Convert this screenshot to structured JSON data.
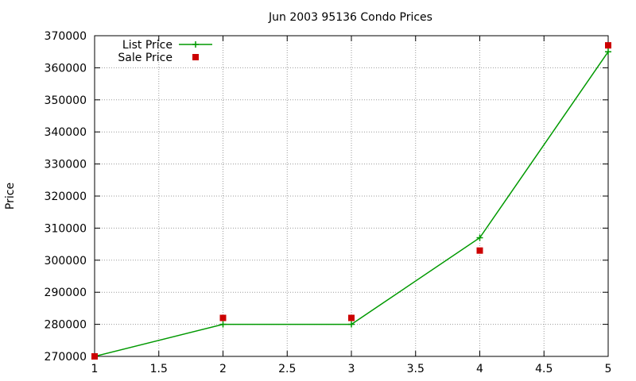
{
  "chart_data": {
    "type": "line",
    "title": "Jun 2003 95136 Condo Prices",
    "xlabel": "",
    "ylabel": "Price",
    "xlim": [
      1,
      5
    ],
    "ylim": [
      270000,
      370000
    ],
    "xticks": [
      "1",
      "1.5",
      "2",
      "2.5",
      "3",
      "3.5",
      "4",
      "4.5",
      "5"
    ],
    "yticks": [
      "270000",
      "280000",
      "290000",
      "300000",
      "310000",
      "320000",
      "330000",
      "340000",
      "350000",
      "360000",
      "370000"
    ],
    "grid": true,
    "legend_position": "top-left",
    "series": [
      {
        "name": "List Price",
        "style": "line-with-plus-markers",
        "color": "#009900",
        "x": [
          1,
          2,
          3,
          4,
          5
        ],
        "y": [
          270000,
          280000,
          280000,
          307000,
          365000
        ]
      },
      {
        "name": "Sale Price",
        "style": "square-markers",
        "color": "#cc0000",
        "x": [
          1,
          2,
          3,
          4,
          5
        ],
        "y": [
          270000,
          282000,
          282000,
          303000,
          367000
        ]
      }
    ]
  }
}
